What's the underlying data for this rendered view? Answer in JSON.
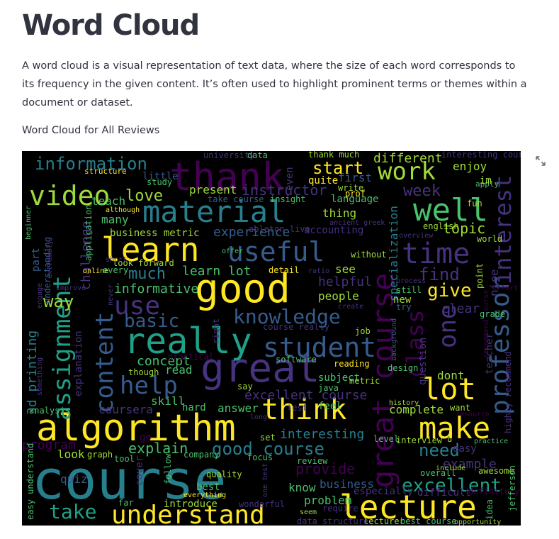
{
  "page": {
    "title": "Word Cloud",
    "description": "A word cloud is a visual representation of text data, where the size of each word corresponds to its frequency in the given content. It’s often used to highlight prominent terms or themes within a document or dataset.",
    "caption": "Word Cloud for All Reviews"
  },
  "colors": {
    "background": "#000000",
    "palette": [
      "#440154",
      "#46327e",
      "#365c8d",
      "#277f8e",
      "#1fa187",
      "#4ac16d",
      "#a0da39",
      "#fde725"
    ]
  },
  "toolbar": {
    "fullscreen_icon": "expand-arrows-icon"
  },
  "word_cloud": {
    "words": [
      {
        "text": "course",
        "color": "#277f8e"
      },
      {
        "text": "good",
        "color": "#fde725"
      },
      {
        "text": "great",
        "color": "#46327e"
      },
      {
        "text": "great course",
        "color": "#440154"
      },
      {
        "text": "algorithm",
        "color": "#fde725"
      },
      {
        "text": "really",
        "color": "#1fa187"
      },
      {
        "text": "material",
        "color": "#277f8e"
      },
      {
        "text": "thank",
        "color": "#440154"
      },
      {
        "text": "learn",
        "color": "#fde725"
      },
      {
        "text": "lecture",
        "color": "#fde725"
      },
      {
        "text": "professor",
        "color": "#365c8d"
      },
      {
        "text": "interest",
        "color": "#46327e"
      },
      {
        "text": "student",
        "color": "#365c8d"
      },
      {
        "text": "useful",
        "color": "#365c8d"
      },
      {
        "text": "think",
        "color": "#fde725"
      },
      {
        "text": "make",
        "color": "#fde725"
      },
      {
        "text": "assignment",
        "color": "#1fa187"
      },
      {
        "text": "video",
        "color": "#a0da39"
      },
      {
        "text": "content",
        "color": "#365c8d"
      },
      {
        "text": "understand",
        "color": "#fde725"
      },
      {
        "text": "well",
        "color": "#4ac16d"
      },
      {
        "text": "time",
        "color": "#46327e"
      },
      {
        "text": "lot",
        "color": "#fde725"
      },
      {
        "text": "one",
        "color": "#46327e"
      },
      {
        "text": "class",
        "color": "#440154"
      },
      {
        "text": "work",
        "color": "#a0da39"
      },
      {
        "text": "knowledge",
        "color": "#365c8d"
      },
      {
        "text": "use",
        "color": "#46327e"
      },
      {
        "text": "help",
        "color": "#365c8d"
      },
      {
        "text": "basic",
        "color": "#365c8d"
      },
      {
        "text": "excellent",
        "color": "#1fa187"
      },
      {
        "text": "information",
        "color": "#277f8e"
      },
      {
        "text": "take",
        "color": "#1fa187"
      },
      {
        "text": "give",
        "color": "#fde725"
      },
      {
        "text": "start",
        "color": "#fde725"
      },
      {
        "text": "need",
        "color": "#277f8e"
      },
      {
        "text": "good course",
        "color": "#277f8e"
      },
      {
        "text": "excellent course",
        "color": "#46327e"
      },
      {
        "text": "way",
        "color": "#a0da39"
      },
      {
        "text": "find",
        "color": "#46327e"
      },
      {
        "text": "explain",
        "color": "#4ac16d"
      },
      {
        "text": "much",
        "color": "#277f8e"
      },
      {
        "text": "love",
        "color": "#a0da39"
      },
      {
        "text": "week",
        "color": "#46327e"
      },
      {
        "text": "concept",
        "color": "#4ac16d"
      },
      {
        "text": "topic",
        "color": "#a0da39"
      },
      {
        "text": "challenge",
        "color": "#46327e"
      },
      {
        "text": "informative",
        "color": "#4ac16d"
      },
      {
        "text": "learn lot",
        "color": "#4ac16d"
      },
      {
        "text": "instructor",
        "color": "#46327e"
      },
      {
        "text": "experience",
        "color": "#365c8d"
      },
      {
        "text": "provide",
        "color": "#440154"
      },
      {
        "text": "example",
        "color": "#46327e"
      },
      {
        "text": "3d printing",
        "color": "#277f8e"
      },
      {
        "text": "clear",
        "color": "#46327e"
      },
      {
        "text": "helpful",
        "color": "#46327e"
      },
      {
        "text": "specialization",
        "color": "#277f8e"
      },
      {
        "text": "interesting",
        "color": "#277f8e"
      },
      {
        "text": "different",
        "color": "#a0da39"
      },
      {
        "text": "coursera",
        "color": "#46327e"
      },
      {
        "text": "quiz",
        "color": "#365c8d"
      },
      {
        "text": "program",
        "color": "#440154"
      },
      {
        "text": "complete",
        "color": "#a0da39"
      },
      {
        "text": "answer",
        "color": "#4ac16d"
      },
      {
        "text": "people",
        "color": "#a0da39"
      },
      {
        "text": "skill",
        "color": "#4ac16d"
      },
      {
        "text": "business metric",
        "color": "#a0da39"
      },
      {
        "text": "business",
        "color": "#365c8d"
      },
      {
        "text": "know",
        "color": "#4ac16d"
      },
      {
        "text": "problem",
        "color": "#4ac16d"
      },
      {
        "text": "introduce",
        "color": "#a0da39"
      },
      {
        "text": "cover",
        "color": "#46327e"
      },
      {
        "text": "best",
        "color": "#4ac16d"
      },
      {
        "text": "present",
        "color": "#a0da39"
      },
      {
        "text": "thing",
        "color": "#a0da39"
      },
      {
        "text": "enjoy",
        "color": "#a0da39"
      },
      {
        "text": "first",
        "color": "#365c8d"
      },
      {
        "text": "quite",
        "color": "#fde725"
      },
      {
        "text": "teach",
        "color": "#4ac16d"
      },
      {
        "text": "many",
        "color": "#4ac16d"
      },
      {
        "text": "little",
        "color": "#365c8d"
      },
      {
        "text": "structure",
        "color": "#fde725"
      },
      {
        "text": "study",
        "color": "#4ac16d"
      },
      {
        "text": "see",
        "color": "#a0da39"
      },
      {
        "text": "new",
        "color": "#a0da39"
      },
      {
        "text": "dont",
        "color": "#a0da39"
      },
      {
        "text": "question",
        "color": "#46327e"
      },
      {
        "text": "nice",
        "color": "#46327e"
      },
      {
        "text": "teacher",
        "color": "#46327e"
      },
      {
        "text": "fun",
        "color": "#a0da39"
      },
      {
        "text": "english",
        "color": "#a0da39"
      },
      {
        "text": "accounting",
        "color": "#46327e"
      },
      {
        "text": "look",
        "color": "#a0da39"
      },
      {
        "text": "graph",
        "color": "#a0da39"
      },
      {
        "text": "go",
        "color": "#440154"
      },
      {
        "text": "read",
        "color": "#4ac16d"
      },
      {
        "text": "hard",
        "color": "#4ac16d"
      },
      {
        "text": "feel",
        "color": "#4ac16d"
      },
      {
        "text": "easy",
        "color": "#46327e"
      },
      {
        "text": "want",
        "color": "#a0da39"
      },
      {
        "text": "explanation",
        "color": "#46327e"
      },
      {
        "text": "understanding",
        "color": "#365c8d"
      },
      {
        "text": "application",
        "color": "#4ac16d"
      },
      {
        "text": "part",
        "color": "#365c8d"
      },
      {
        "text": "apply",
        "color": "#4ac16d"
      },
      {
        "text": "im",
        "color": "#a0da39"
      },
      {
        "text": "language",
        "color": "#4ac16d"
      },
      {
        "text": "write",
        "color": "#a0da39"
      },
      {
        "text": "prof",
        "color": "#fde725"
      },
      {
        "text": "take course",
        "color": "#365c8d"
      },
      {
        "text": "insight",
        "color": "#4ac16d"
      },
      {
        "text": "although",
        "color": "#fde725"
      },
      {
        "text": "detail",
        "color": "#fde725"
      },
      {
        "text": "ratio",
        "color": "#46327e"
      },
      {
        "text": "still",
        "color": "#4ac16d"
      },
      {
        "text": "try",
        "color": "#365c8d"
      },
      {
        "text": "job",
        "color": "#a0da39"
      },
      {
        "text": "course really",
        "color": "#46327e"
      },
      {
        "text": "reading",
        "color": "#fde725"
      },
      {
        "text": "software",
        "color": "#4ac16d"
      },
      {
        "text": "design",
        "color": "#4ac16d"
      },
      {
        "text": "subject",
        "color": "#4ac16d"
      },
      {
        "text": "metric",
        "color": "#a0da39"
      },
      {
        "text": "java",
        "color": "#4ac16d"
      },
      {
        "text": "say",
        "color": "#a0da39"
      },
      {
        "text": "though",
        "color": "#a0da39"
      },
      {
        "text": "practical",
        "color": "#440154"
      },
      {
        "text": "highly recommend",
        "color": "#46327e"
      },
      {
        "text": "recommend course",
        "color": "#440154"
      },
      {
        "text": "grade",
        "color": "#4ac16d"
      },
      {
        "text": "point",
        "color": "#a0da39"
      },
      {
        "text": "effort",
        "color": "#440154"
      },
      {
        "text": "world",
        "color": "#a0da39"
      },
      {
        "text": "interview",
        "color": "#a0da39"
      },
      {
        "text": "history",
        "color": "#a0da39"
      },
      {
        "text": "practice",
        "color": "#4ac16d"
      },
      {
        "text": "resource",
        "color": "#440154"
      },
      {
        "text": "level",
        "color": "#4ac16d"
      },
      {
        "text": "set",
        "color": "#a0da39"
      },
      {
        "text": "test",
        "color": "#46327e"
      },
      {
        "text": "long",
        "color": "#46327e"
      },
      {
        "text": "focus",
        "color": "#4ac16d"
      },
      {
        "text": "review",
        "color": "#4ac16d"
      },
      {
        "text": "overall",
        "color": "#4ac16d"
      },
      {
        "text": "include",
        "color": "#a0da39"
      },
      {
        "text": "awesome",
        "color": "#a0da39"
      },
      {
        "text": "especially",
        "color": "#46327e"
      },
      {
        "text": "difficult",
        "color": "#46327e"
      },
      {
        "text": "definitely",
        "color": "#440154"
      },
      {
        "text": "idea",
        "color": "#4ac16d"
      },
      {
        "text": "jefferson",
        "color": "#4ac16d"
      },
      {
        "text": "require",
        "color": "#46327e"
      },
      {
        "text": "seem",
        "color": "#a0da39"
      },
      {
        "text": "data structure",
        "color": "#46327e"
      },
      {
        "text": "lecturer",
        "color": "#a0da39"
      },
      {
        "text": "best course",
        "color": "#4ac16d"
      },
      {
        "text": "opportunity",
        "color": "#a0da39"
      },
      {
        "text": "wonderful",
        "color": "#46327e"
      },
      {
        "text": "far",
        "color": "#4ac16d"
      },
      {
        "text": "everything",
        "color": "#fde725"
      },
      {
        "text": "quality",
        "color": "#a0da39"
      },
      {
        "text": "follow",
        "color": "#4ac16d"
      },
      {
        "text": "company",
        "color": "#4ac16d"
      },
      {
        "text": "tool",
        "color": "#4ac16d"
      },
      {
        "text": "analysis",
        "color": "#4ac16d"
      },
      {
        "text": "easy understand",
        "color": "#4ac16d"
      },
      {
        "text": "something",
        "color": "#46327e"
      },
      {
        "text": "engage",
        "color": "#46327e"
      },
      {
        "text": "extremely",
        "color": "#46327e"
      },
      {
        "text": "beginner",
        "color": "#4ac16d"
      },
      {
        "text": "online",
        "color": "#fde725"
      },
      {
        "text": "every",
        "color": "#4ac16d"
      },
      {
        "text": "never",
        "color": "#46327e"
      },
      {
        "text": "look forward",
        "color": "#a0da39"
      },
      {
        "text": "improve",
        "color": "#46327e"
      },
      {
        "text": "university",
        "color": "#46327e"
      },
      {
        "text": "data",
        "color": "#4ac16d"
      },
      {
        "text": "thank much",
        "color": "#a0da39"
      },
      {
        "text": "interesting course",
        "color": "#46327e"
      },
      {
        "text": "ancient greek",
        "color": "#46327e"
      },
      {
        "text": "ableton live",
        "color": "#46327e"
      },
      {
        "text": "without",
        "color": "#a0da39"
      },
      {
        "text": "offer",
        "color": "#4ac16d"
      },
      {
        "text": "create",
        "color": "#46327e"
      },
      {
        "text": "process",
        "color": "#46327e"
      },
      {
        "text": "overview",
        "color": "#46327e"
      },
      {
        "text": "background",
        "color": "#365c8d"
      },
      {
        "text": "right",
        "color": "#46327e"
      },
      {
        "text": "u",
        "color": "#a0da39"
      },
      {
        "text": "even",
        "color": "#46327e"
      },
      {
        "text": "short",
        "color": "#46327e"
      },
      {
        "text": "one best",
        "color": "#46327e"
      }
    ]
  }
}
